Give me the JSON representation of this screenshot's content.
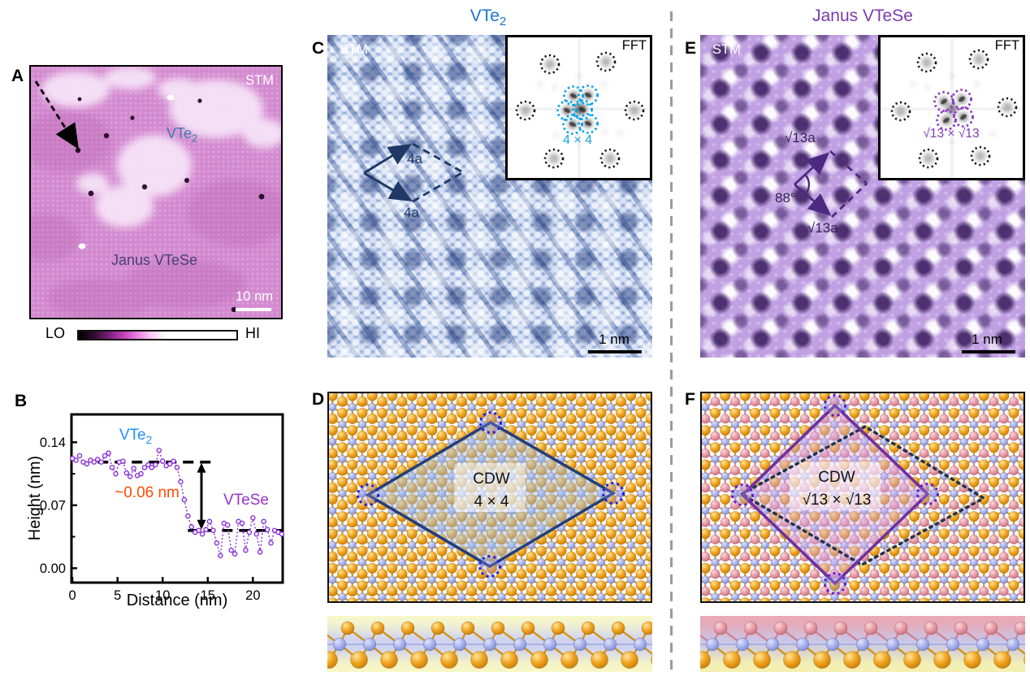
{
  "panels": {
    "a": "A",
    "b": "B",
    "c": "C",
    "d": "D",
    "e": "E",
    "f": "F"
  },
  "headers": {
    "left": {
      "text": "VTe",
      "sub": "2",
      "color": "#1b74cf"
    },
    "right": {
      "text": "Janus VTeSe",
      "color": "#7a3cac"
    }
  },
  "panel_a": {
    "stm_label": "STM",
    "region_vte2": {
      "text": "VTe",
      "sub": "2"
    },
    "region_janus": "Janus VTeSe",
    "scale_bar": "10 nm",
    "colorbar": {
      "low": "LO",
      "high": "HI"
    }
  },
  "panel_c": {
    "stm_label": "STM",
    "fft_label": "FFT",
    "vector1": "4a",
    "vector2": "4a",
    "fft_order": "4 × 4",
    "scale_bar": "1 nm",
    "accent_color": "#19a2e0",
    "cell_color": "#1f3864"
  },
  "panel_d": {
    "cdw": "CDW",
    "order": "4 × 4"
  },
  "panel_e": {
    "stm_label": "STM",
    "fft_label": "FFT",
    "vector1": "√13a",
    "vector2": "√13a",
    "angle": "88°",
    "fft_order": "√13 × √13",
    "scale_bar": "1 nm",
    "accent_color": "#8a35c8",
    "cell_color": "#4c2a80"
  },
  "panel_f": {
    "cdw": "CDW",
    "order": "√13 × √13"
  },
  "chart_data": {
    "type": "line",
    "title": "",
    "xlabel": "Distance (nm)",
    "ylabel": "Height (nm)",
    "xlim": [
      -0.1,
      23.3
    ],
    "ylim": [
      -0.016,
      0.171
    ],
    "xticks": [
      0,
      5,
      10,
      15,
      20
    ],
    "yticks": [
      {
        "value": 0,
        "label": "0.00"
      },
      {
        "value": 0.07,
        "label": "0.07"
      },
      {
        "value": 0.14,
        "label": "0.14"
      }
    ],
    "yticks_minor": [
      0.035,
      0.105
    ],
    "grid": false,
    "series": [
      {
        "name": "height-profile",
        "color": "#8a2be2",
        "points": [
          [
            0,
            0.122
          ],
          [
            0.4,
            0.12
          ],
          [
            0.8,
            0.125
          ],
          [
            1.2,
            0.118
          ],
          [
            1.6,
            0.116
          ],
          [
            2.0,
            0.12
          ],
          [
            2.4,
            0.118
          ],
          [
            2.8,
            0.121
          ],
          [
            3.2,
            0.118
          ],
          [
            3.6,
            0.125
          ],
          [
            4.0,
            0.128
          ],
          [
            4.4,
            0.112
          ],
          [
            4.8,
            0.105
          ],
          [
            5.2,
            0.118
          ],
          [
            5.6,
            0.119
          ],
          [
            6.0,
            0.106
          ],
          [
            6.4,
            0.102
          ],
          [
            6.8,
            0.111
          ],
          [
            7.2,
            0.103
          ],
          [
            7.6,
            0.105
          ],
          [
            8.0,
            0.112
          ],
          [
            8.4,
            0.115
          ],
          [
            8.8,
            0.112
          ],
          [
            9.2,
            0.115
          ],
          [
            9.6,
            0.131
          ],
          [
            10.0,
            0.119
          ],
          [
            10.4,
            0.114
          ],
          [
            10.8,
            0.116
          ],
          [
            11.2,
            0.119
          ],
          [
            11.6,
            0.112
          ],
          [
            12.0,
            0.096
          ],
          [
            12.4,
            0.076
          ],
          [
            12.8,
            0.058
          ],
          [
            13.2,
            0.046
          ],
          [
            13.6,
            0.04
          ],
          [
            14.0,
            0.042
          ],
          [
            14.4,
            0.038
          ],
          [
            14.8,
            0.043
          ],
          [
            15.2,
            0.052
          ],
          [
            15.6,
            0.042
          ],
          [
            16.0,
            0.028
          ],
          [
            16.4,
            0.014
          ],
          [
            16.8,
            0.05
          ],
          [
            17.2,
            0.048
          ],
          [
            17.6,
            0.02
          ],
          [
            18.0,
            0.016
          ],
          [
            18.4,
            0.052
          ],
          [
            18.8,
            0.05
          ],
          [
            19.2,
            0.02
          ],
          [
            19.6,
            0.04
          ],
          [
            20.0,
            0.056
          ],
          [
            20.4,
            0.038
          ],
          [
            20.8,
            0.018
          ],
          [
            21.2,
            0.052
          ],
          [
            21.6,
            0.043
          ],
          [
            22.0,
            0.028
          ],
          [
            22.4,
            0.042
          ],
          [
            22.8,
            0.04
          ],
          [
            23.2,
            0.038
          ]
        ]
      }
    ],
    "annotations": {
      "upper_level": {
        "y": 0.118,
        "x1": 2.8,
        "x2": 15.6
      },
      "lower_level": {
        "y": 0.042,
        "x1": 12.8,
        "x2": 23.2
      },
      "step_arrow_x": 14.3,
      "step_label": {
        "text": "~0.06 nm",
        "color": "#ff4a00"
      },
      "label_vte2": {
        "text": "VTe",
        "sub": "2",
        "color": "#1e90ff"
      },
      "label_vtese": {
        "text": "VTeSe",
        "color": "#9932cc"
      }
    }
  }
}
